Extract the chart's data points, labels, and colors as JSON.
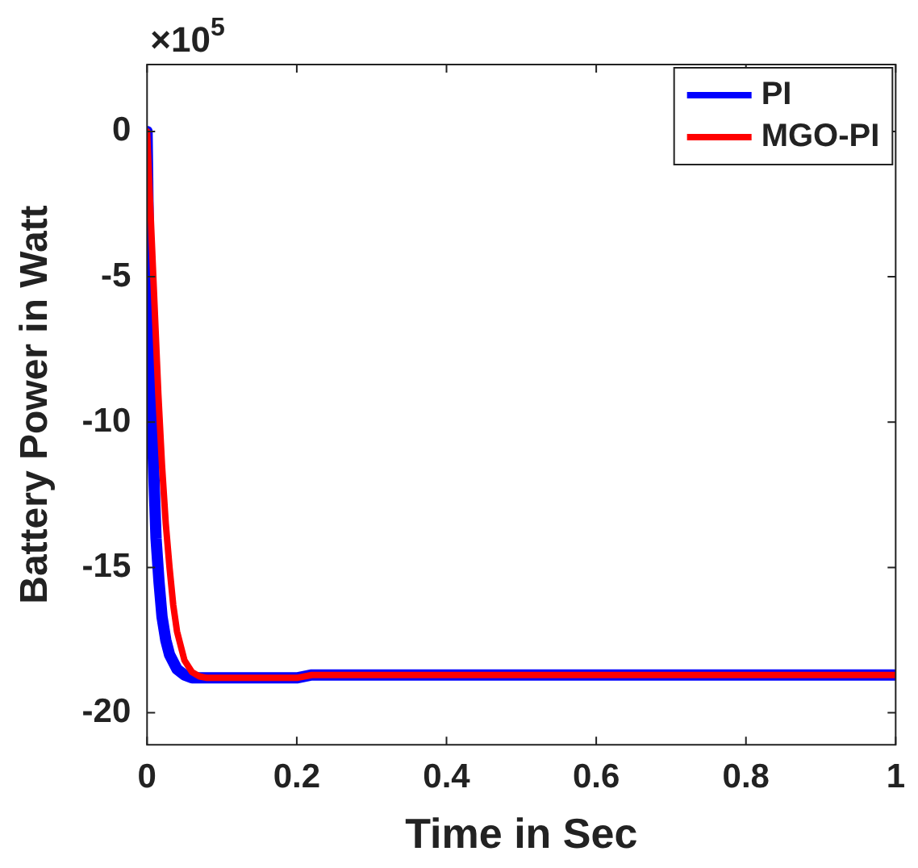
{
  "chart_data": {
    "type": "line",
    "xlabel": "Time in Sec",
    "ylabel": "Battery Power in Watt",
    "annotations": [
      "×10$^{5}$"
    ],
    "xlim": [
      0,
      1
    ],
    "xticks": [
      0,
      0.2,
      0.4,
      0.6,
      0.8,
      1
    ],
    "ylim": [
      -21.1,
      2.3
    ],
    "yticks": [
      -20,
      -15,
      -10,
      -5,
      0
    ],
    "grid": false,
    "legend": "top right",
    "marker": "none",
    "line_style": "solid",
    "series": [
      {
        "name": "PI",
        "color": "#0000ff",
        "x": [
          0,
          0.002,
          0.005,
          0.008,
          0.012,
          0.016,
          0.02,
          0.025,
          0.03,
          0.04,
          0.05,
          0.06,
          0.08,
          0.1,
          0.2,
          0.22,
          0.3,
          0.5,
          0.7,
          1
        ],
        "values": [
          0,
          -4,
          -8,
          -11,
          -14,
          -15.5,
          -16.7,
          -17.5,
          -18,
          -18.5,
          -18.7,
          -18.8,
          -18.8,
          -18.8,
          -18.8,
          -18.7,
          -18.7,
          -18.7,
          -18.7,
          -18.7
        ]
      },
      {
        "name": "MGO-PI",
        "color": "#ff0000",
        "x": [
          0,
          0.005,
          0.01,
          0.015,
          0.02,
          0.025,
          0.03,
          0.035,
          0.04,
          0.05,
          0.06,
          0.07,
          0.08,
          0.1,
          0.2,
          0.22,
          0.3,
          0.5,
          0.7,
          1
        ],
        "values": [
          0,
          -3,
          -6,
          -9,
          -11.5,
          -13.5,
          -15,
          -16.3,
          -17.2,
          -18.2,
          -18.6,
          -18.75,
          -18.8,
          -18.8,
          -18.8,
          -18.7,
          -18.7,
          -18.7,
          -18.7,
          -18.7
        ]
      }
    ]
  }
}
